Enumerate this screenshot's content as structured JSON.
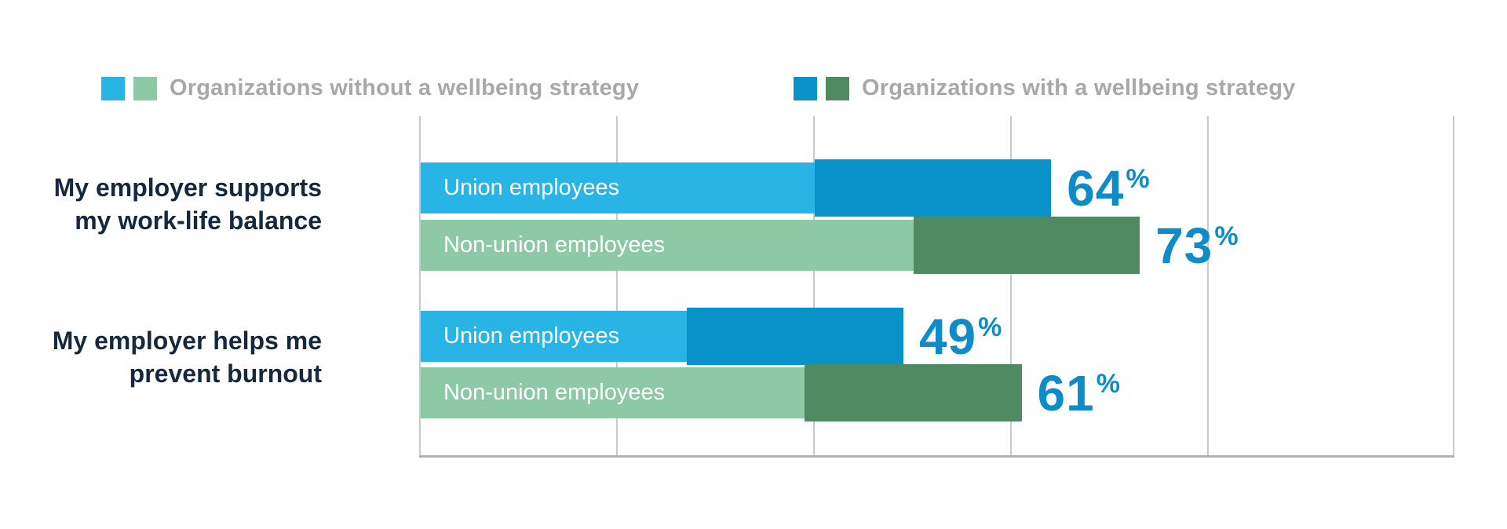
{
  "colors": {
    "light_blue": "#29B4E6",
    "dark_blue": "#0992C9",
    "light_green": "#8CC9A4",
    "dark_green": "#4E8B63",
    "legend_text": "#A8A8A8",
    "category_text": "#14293E",
    "value_text": "#0E8CC9",
    "gridline": "#C9C9C9",
    "axis": "#B2B2B2"
  },
  "legend": {
    "items": [
      {
        "label": "Organizations without a wellbeing strategy",
        "swatches": [
          "light_blue",
          "light_green"
        ]
      },
      {
        "label": "Organizations with a wellbeing strategy",
        "swatches": [
          "dark_blue",
          "dark_green"
        ]
      }
    ]
  },
  "chart_data": {
    "type": "bar",
    "orientation": "horizontal",
    "axis": {
      "min": 0,
      "max": 100,
      "gridline_step_pct": 20,
      "grid": true,
      "tick_labels_visible": false
    },
    "value_suffix": "%",
    "legend_position": "top",
    "groups": [
      {
        "category_line1": "My employer supports",
        "category_line2": "my work-life balance",
        "rows": [
          {
            "label": "Union employees",
            "palette": "blue",
            "without_strategy_pct": 40,
            "with_strategy_pct": 64,
            "display_value": "64"
          },
          {
            "label": "Non-union employees",
            "palette": "green",
            "without_strategy_pct": 50,
            "with_strategy_pct": 73,
            "display_value": "73"
          }
        ]
      },
      {
        "category_line1": "My employer helps me",
        "category_line2": "prevent burnout",
        "rows": [
          {
            "label": "Union employees",
            "palette": "blue",
            "without_strategy_pct": 27,
            "with_strategy_pct": 49,
            "display_value": "49"
          },
          {
            "label": "Non-union employees",
            "palette": "green",
            "without_strategy_pct": 39,
            "with_strategy_pct": 61,
            "display_value": "61"
          }
        ]
      }
    ]
  }
}
